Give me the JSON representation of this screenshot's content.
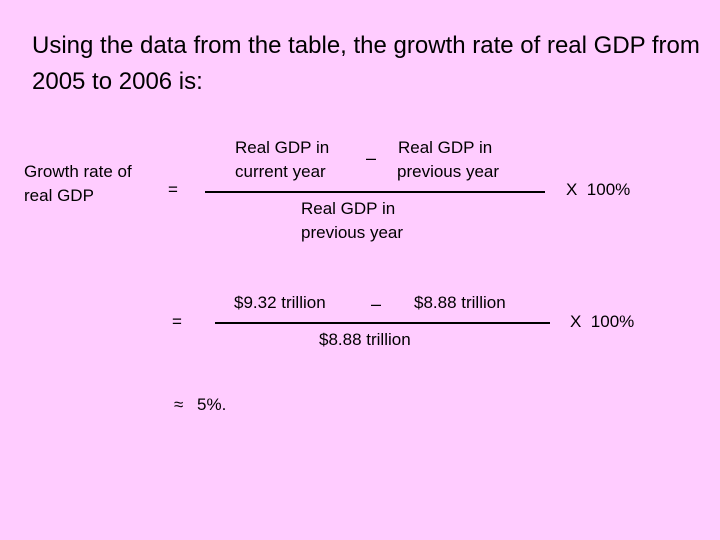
{
  "title": "Using the data from the table, the growth rate of real GDP from 2005 to 2006 is:",
  "formula": {
    "lhs_line1": "Growth rate of",
    "lhs_line2": "real GDP",
    "equals": "=",
    "num_left_line1": "Real GDP in",
    "num_left_line2": "current year",
    "minus": "–",
    "num_right_line1": "Real GDP in",
    "num_right_line2": "previous year",
    "den_line1": "Real GDP in",
    "den_line2": "previous year",
    "times": "X  100%"
  },
  "calculation": {
    "equals": "=",
    "num_left": "$9.32 trillion",
    "minus": "–",
    "num_right": "$8.88 trillion",
    "denominator": "$8.88 trillion",
    "times": "X  100%"
  },
  "result": {
    "approx": "≈",
    "value": "5%."
  }
}
